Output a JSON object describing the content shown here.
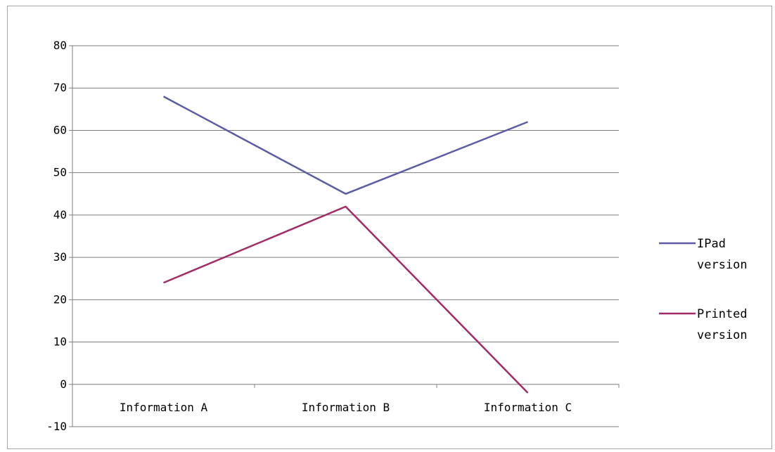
{
  "chart_data": {
    "type": "line",
    "title": "",
    "xlabel": "",
    "ylabel": "",
    "categories": [
      "Information A",
      "Information B",
      "Information C"
    ],
    "series": [
      {
        "name": "IPad version",
        "name_lines": [
          "IPad",
          "version"
        ],
        "values": [
          68,
          45,
          62
        ],
        "color": "#5b5ba6"
      },
      {
        "name": "Printed version",
        "name_lines": [
          "Printed",
          "version"
        ],
        "values": [
          24,
          42,
          -2
        ],
        "color": "#a02b66"
      }
    ],
    "ylim": [
      -10,
      80
    ],
    "yticks": [
      -10,
      0,
      10,
      20,
      30,
      40,
      50,
      60,
      70,
      80
    ],
    "grid": true,
    "legend": "right",
    "axis_color": "#7f7f7f",
    "grid_color": "#7f7f7f"
  }
}
